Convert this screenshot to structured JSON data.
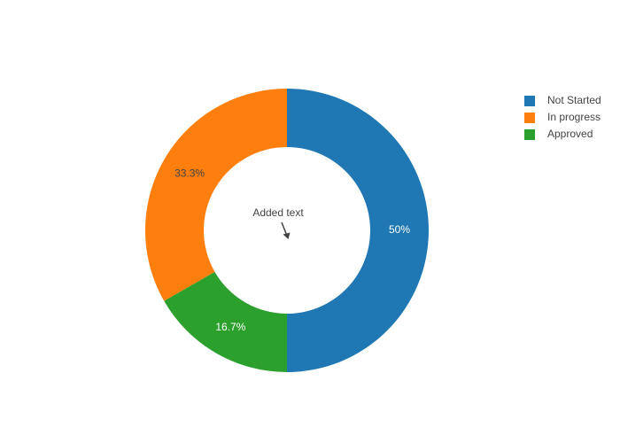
{
  "chart_data": {
    "type": "donut",
    "categories": [
      "Not Started",
      "In progress",
      "Approved"
    ],
    "values": [
      50,
      33.3,
      16.7
    ],
    "value_labels": [
      "50%",
      "33.3%",
      "16.7%"
    ],
    "colors": [
      "#1f77b4",
      "#ff7f0e",
      "#2ca02c"
    ],
    "annotation": "Added text",
    "legend": "top-right"
  }
}
